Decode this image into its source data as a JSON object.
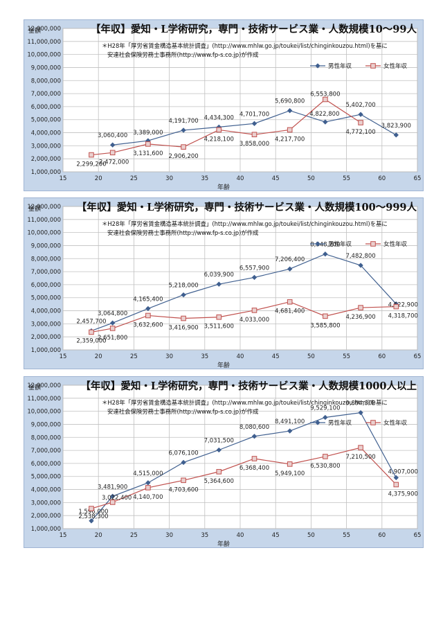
{
  "charts_common": {
    "ylabel": "金額",
    "xlabel": "年齢",
    "note_line1": "＊H28年「厚労省賃金構造基本統計調査」(http://www.mhlw.go.jp/toukei/list/chinginkouzou.html)を基に",
    "note_line2": "安達社会保険労務士事務所(http://www.fp-s.co.jp)が作成",
    "colors": {
      "male": "#3f5f8f",
      "female": "#c0504d",
      "plot_bg": "#ffffff",
      "grid": "#c0c0c0",
      "panel_bg": "#c6d6ea"
    }
  },
  "chart_data": [
    {
      "type": "line",
      "title": "【年収】愛知・L学術研究，専門・技術サービス業・人数規模10～99人",
      "xlabel": "年齢",
      "ylabel": "金額",
      "xlim": [
        15,
        65
      ],
      "xticks": [
        "15",
        "20",
        "25",
        "30",
        "35",
        "40",
        "45",
        "50",
        "55",
        "60",
        "65"
      ],
      "ylim": [
        1000000,
        12000000
      ],
      "yticks": [
        "1,000,000",
        "2,000,000",
        "3,000,000",
        "4,000,000",
        "5,000,000",
        "6,000,000",
        "7,000,000",
        "8,000,000",
        "9,000,000",
        "10,000,000",
        "11,000,000",
        "12,000,000"
      ],
      "grid": true,
      "legend_position": "top-right",
      "series": [
        {
          "name": "男性年収",
          "x": [
            22,
            27,
            32,
            37,
            42,
            47,
            52,
            57,
            62
          ],
          "y": [
            3060400,
            3389000,
            4191700,
            4434300,
            4701700,
            5690800,
            4822800,
            5402700,
            3823900
          ],
          "labels": [
            "3,060,400",
            "3,389,000",
            "4,191,700",
            "4,434,300",
            "4,701,700",
            "5,690,800",
            "4,822,800",
            "5,402,700",
            "3,823,900"
          ]
        },
        {
          "name": "女性年収",
          "x": [
            19,
            22,
            27,
            32,
            37,
            42,
            47,
            52,
            57
          ],
          "y": [
            2299200,
            2472000,
            3131600,
            2906200,
            4218100,
            3858000,
            4217700,
            6553800,
            4772100
          ],
          "labels": [
            "2,299,200",
            "2,472,000",
            "3,131,600",
            "2,906,200",
            "4,218,100",
            "3,858,000",
            "4,217,700",
            "6,553,800",
            "4,772,100"
          ]
        }
      ]
    },
    {
      "type": "line",
      "title": "【年収】愛知・L学術研究，専門・技術サービス業・人数規模100～999人",
      "xlabel": "年齢",
      "ylabel": "金額",
      "xlim": [
        15,
        65
      ],
      "xticks": [
        "15",
        "20",
        "25",
        "30",
        "35",
        "40",
        "45",
        "50",
        "55",
        "60",
        "65"
      ],
      "ylim": [
        1000000,
        12000000
      ],
      "yticks": [
        "1,000,000",
        "2,000,000",
        "3,000,000",
        "4,000,000",
        "5,000,000",
        "6,000,000",
        "7,000,000",
        "8,000,000",
        "9,000,000",
        "10,000,000",
        "11,000,000",
        "12,000,000"
      ],
      "grid": true,
      "legend_position": "top-right",
      "series": [
        {
          "name": "男性年収",
          "x": [
            19,
            22,
            27,
            32,
            37,
            42,
            47,
            52,
            57,
            62
          ],
          "y": [
            2457700,
            3064800,
            4165400,
            5218000,
            6039900,
            6557900,
            7206400,
            8348200,
            7482800,
            4522900
          ],
          "labels": [
            "2,457,700",
            "3,064,800",
            "4,165,400",
            "5,218,000",
            "6,039,900",
            "6,557,900",
            "7,206,400",
            "8,348,200",
            "7,482,800",
            "4,522,900"
          ]
        },
        {
          "name": "女性年収",
          "x": [
            19,
            22,
            27,
            32,
            37,
            42,
            47,
            52,
            57,
            62
          ],
          "y": [
            2359000,
            2651800,
            3632600,
            3416900,
            3511600,
            4033000,
            4681400,
            3585800,
            4236900,
            4318700
          ],
          "labels": [
            "2,359,000",
            "2,651,800",
            "3,632,600",
            "3,416,900",
            "3,511,600",
            "4,033,000",
            "4,681,400",
            "3,585,800",
            "4,236,900",
            "4,318,700"
          ]
        }
      ]
    },
    {
      "type": "line",
      "title": "【年収】愛知・L学術研究，専門・技術サービス業・人数規模1000人以上",
      "xlabel": "年齢",
      "ylabel": "金額",
      "xlim": [
        15,
        65
      ],
      "xticks": [
        "15",
        "20",
        "25",
        "30",
        "35",
        "40",
        "45",
        "50",
        "55",
        "60",
        "65"
      ],
      "ylim": [
        1000000,
        12000000
      ],
      "yticks": [
        "1,000,000",
        "2,000,000",
        "3,000,000",
        "4,000,000",
        "5,000,000",
        "6,000,000",
        "7,000,000",
        "8,000,000",
        "9,000,000",
        "10,000,000",
        "11,000,000",
        "12,000,000"
      ],
      "grid": true,
      "legend_position": "top-right",
      "series": [
        {
          "name": "男性年収",
          "x": [
            19,
            22,
            27,
            32,
            37,
            42,
            47,
            52,
            57,
            62
          ],
          "y": [
            1596000,
            3481900,
            4515000,
            6076100,
            7031500,
            8080600,
            8491100,
            9529100,
            9894300,
            4907000
          ],
          "labels": [
            "1,596,000",
            "3,481,900",
            "4,515,000",
            "6,076,100",
            "7,031,500",
            "8,080,600",
            "8,491,100",
            "9,529,100",
            "9,894,300",
            "4,907,000"
          ]
        },
        {
          "name": "女性年収",
          "x": [
            19,
            22,
            27,
            32,
            37,
            42,
            47,
            52,
            57,
            62
          ],
          "y": [
            2538300,
            3022400,
            4140700,
            4703600,
            5364600,
            6368400,
            5949100,
            6530800,
            7210500,
            4375900
          ],
          "labels": [
            "2,538,300",
            "3,022,400",
            "4,140,700",
            "4,703,600",
            "5,364,600",
            "6,368,400",
            "5,949,100",
            "6,530,800",
            "7,210,500",
            "4,375,900"
          ]
        }
      ]
    }
  ]
}
